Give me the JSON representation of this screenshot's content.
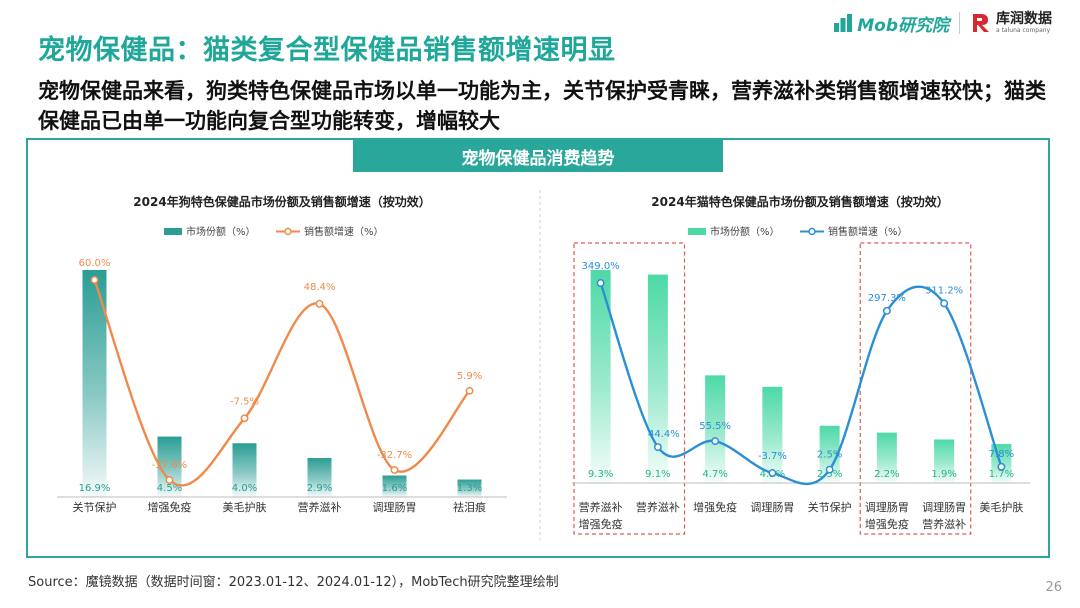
{
  "title": "宠物保健品：猫类复合型保健品销售额增速明显",
  "subtitle": "宠物保健品来看，狗类特色保健品市场以单一功能为主，关节保护受青睐，营养滋补类销售额增速较快；猫类保健品已由单一功能向复合型功能转变，增幅较大",
  "logos": {
    "mob": "Mob研究院",
    "kr_name": "库润数据",
    "kr_sub": "a taluna company"
  },
  "panel_header": "宠物保健品消费趋势",
  "source": "Source：魔镜数据（数据时间窗：2023.01-12、2024.01-12），MobTech研究院整理绘制",
  "page_number": "26",
  "colors": {
    "accent": "#2aa79b",
    "dog_bar": "#2a9d94",
    "dog_line": "#f08a4b",
    "cat_bar": "#4dd9a6",
    "cat_line": "#2b8fd6",
    "highlight_box": "#e05a55"
  },
  "chart_data": [
    {
      "type": "bar+line",
      "title": "2024年狗特色保健品市场份额及销售额增速（按功效）",
      "categories": [
        "关节保护",
        "增强免疫",
        "美毛护肤",
        "营养滋补",
        "调理肠胃",
        "祛泪痕"
      ],
      "series": [
        {
          "name": "市场份额（%）",
          "kind": "bar",
          "values": [
            16.9,
            4.5,
            4.0,
            2.9,
            1.6,
            1.3
          ],
          "labels": [
            "16.9%",
            "4.5%",
            "4.0%",
            "2.9%",
            "1.6%",
            "1.3%"
          ]
        },
        {
          "name": "销售额增速（%）",
          "kind": "line",
          "values": [
            60.0,
            -37.6,
            -7.5,
            48.4,
            -32.7,
            5.9
          ],
          "labels": [
            "60.0%",
            "-37.6%",
            "-7.5%",
            "48.4%",
            "-32.7%",
            "5.9%"
          ]
        }
      ],
      "legend": "top"
    },
    {
      "type": "bar+line",
      "title": "2024年猫特色保健品市场份额及销售额增速（按功效）",
      "categories": [
        [
          "营养滋补",
          "增强免疫"
        ],
        [
          "营养滋补"
        ],
        [
          "增强免疫"
        ],
        [
          "调理肠胃"
        ],
        [
          "关节保护"
        ],
        [
          "调理肠胃",
          "增强免疫"
        ],
        [
          "调理肠胃",
          "营养滋补"
        ],
        [
          "美毛护肤"
        ]
      ],
      "series": [
        {
          "name": "市场份额（%）",
          "kind": "bar",
          "values": [
            9.3,
            9.1,
            4.7,
            4.2,
            2.5,
            2.2,
            1.9,
            1.7
          ],
          "labels": [
            "9.3%",
            "9.1%",
            "4.7%",
            "4.2%",
            "2.5%",
            "2.2%",
            "1.9%",
            "1.7%"
          ]
        },
        {
          "name": "销售额增速（%）",
          "kind": "line",
          "values": [
            349.0,
            44.4,
            55.5,
            -3.7,
            2.5,
            297.3,
            311.2,
            7.8
          ],
          "labels": [
            "349.0%",
            "44.4%",
            "55.5%",
            "-3.7%",
            "2.5%",
            "297.3%",
            "311.2%",
            "7.8%"
          ]
        }
      ],
      "highlight_groups": [
        [
          0,
          1
        ],
        [
          5,
          6
        ]
      ],
      "legend": "top"
    }
  ]
}
